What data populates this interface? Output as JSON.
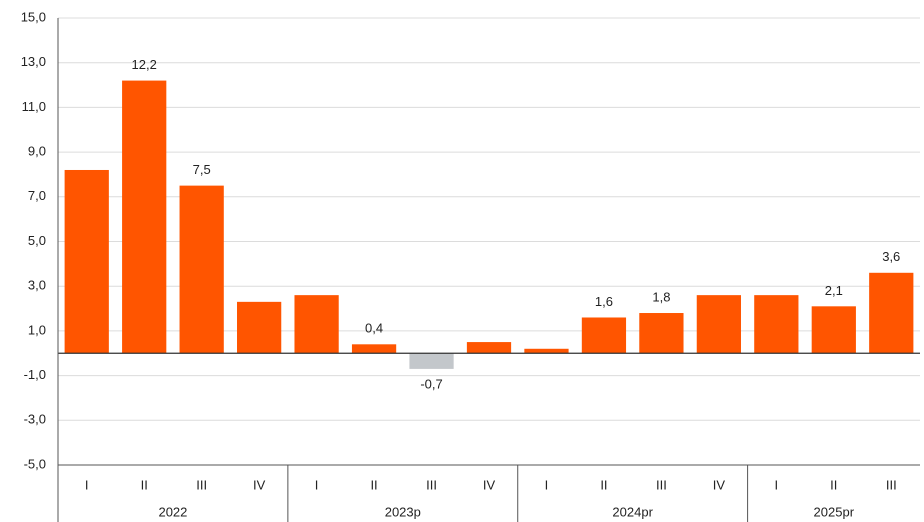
{
  "chart_data": {
    "type": "bar",
    "groups": [
      {
        "name": "2022",
        "categories": [
          "I",
          "II",
          "III",
          "IV"
        ]
      },
      {
        "name": "2023p",
        "categories": [
          "I",
          "II",
          "III",
          "IV"
        ]
      },
      {
        "name": "2024pr",
        "categories": [
          "I",
          "II",
          "III",
          "IV"
        ]
      },
      {
        "name": "2025pr",
        "categories": [
          "I",
          "II",
          "III"
        ]
      }
    ],
    "values": [
      8.2,
      12.2,
      7.5,
      2.3,
      2.6,
      0.4,
      -0.7,
      0.5,
      0.2,
      1.6,
      1.8,
      2.6,
      2.6,
      2.1,
      3.6
    ],
    "value_labels": [
      null,
      "12,2",
      "7,5",
      null,
      null,
      "0,4",
      "-0,7",
      null,
      null,
      "1,6",
      "1,8",
      null,
      null,
      "2,1",
      "3,6"
    ],
    "color": "#ff5500",
    "negative_color": "#c3c7cb",
    "ylim": [
      -5,
      15
    ],
    "yticks": [
      {
        "value": -5,
        "label": "-5,0"
      },
      {
        "value": -3,
        "label": "-3,0"
      },
      {
        "value": -1,
        "label": "-1,0"
      },
      {
        "value": 1,
        "label": "1,0"
      },
      {
        "value": 3,
        "label": "3,0"
      },
      {
        "value": 5,
        "label": "5,0"
      },
      {
        "value": 7,
        "label": "7,0"
      },
      {
        "value": 9,
        "label": "9,0"
      },
      {
        "value": 11,
        "label": "11,0"
      },
      {
        "value": 13,
        "label": "13,0"
      },
      {
        "value": 15,
        "label": "15,0"
      }
    ],
    "grid": true
  }
}
